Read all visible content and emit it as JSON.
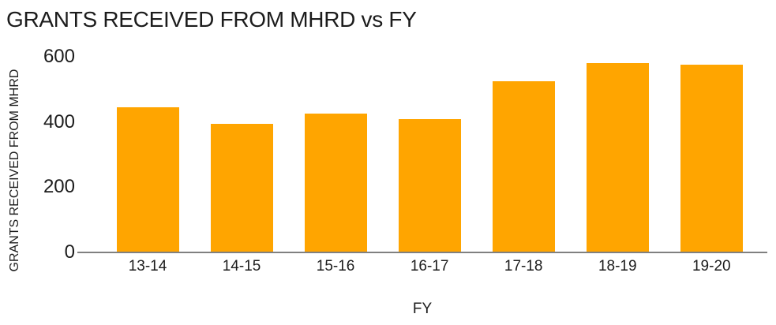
{
  "chart_data": {
    "type": "bar",
    "title": "GRANTS RECEIVED FROM MHRD vs FY",
    "xlabel": "FY",
    "ylabel": "GRANTS RECEIVED FROM MHRD",
    "categories": [
      "13-14",
      "14-15",
      "15-16",
      "16-17",
      "17-18",
      "18-19",
      "19-20"
    ],
    "values": [
      445,
      395,
      425,
      410,
      525,
      580,
      575
    ],
    "ylim": [
      0,
      600
    ],
    "yticks": [
      0,
      200,
      400,
      600
    ],
    "grid": false,
    "legend": "none",
    "bar_color_name": "orange"
  },
  "colors": {
    "bar": "#FFA500",
    "axis": "#808080",
    "text": "#1c1c1c"
  }
}
